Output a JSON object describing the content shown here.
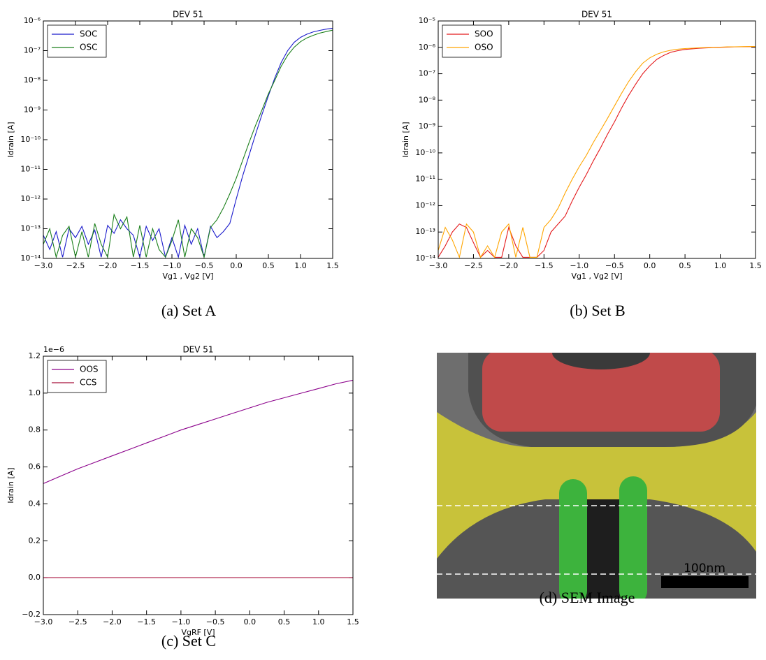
{
  "chart_data": [
    {
      "type": "line",
      "title": "DEV 51",
      "caption": "(a) Set A",
      "x_label": "Vg1 , Vg2 [V]",
      "y_label": "Idrain [A]",
      "log_y": true,
      "legend": "upper left",
      "x": [
        -3.0,
        -2.9,
        -2.8,
        -2.7,
        -2.6,
        -2.5,
        -2.4,
        -2.3,
        -2.2,
        -2.1,
        -2.0,
        -1.9,
        -1.8,
        -1.7,
        -1.6,
        -1.5,
        -1.4,
        -1.3,
        -1.2,
        -1.1,
        -1.0,
        -0.9,
        -0.8,
        -0.7,
        -0.6,
        -0.5,
        -0.4,
        -0.3,
        -0.2,
        -0.1,
        0.0,
        0.1,
        0.2,
        0.3,
        0.4,
        0.5,
        0.6,
        0.7,
        0.8,
        0.9,
        1.0,
        1.1,
        1.2,
        1.3,
        1.4,
        1.5
      ],
      "series": [
        {
          "name": "SOC",
          "color": "#1a1acc",
          "values": [
            6e-14,
            2e-14,
            8e-14,
            1.1e-14,
            1e-13,
            5e-14,
            1.2e-13,
            3e-14,
            9e-14,
            1.1e-14,
            1.3e-13,
            7e-14,
            2e-13,
            1e-13,
            6e-14,
            1.1e-14,
            1.2e-13,
            4e-14,
            1e-13,
            1.1e-14,
            5e-14,
            1.1e-14,
            1.3e-13,
            3e-14,
            1e-13,
            1.1e-14,
            1.2e-13,
            5e-14,
            8e-14,
            1.5e-13,
            1e-12,
            6e-12,
            3e-11,
            1.5e-10,
            7e-10,
            3e-09,
            1.2e-08,
            4e-08,
            1e-07,
            1.9e-07,
            2.8e-07,
            3.6e-07,
            4.3e-07,
            4.8e-07,
            5.3e-07,
            5.7e-07
          ]
        },
        {
          "name": "OSC",
          "color": "#1a7f1a",
          "values": [
            3e-14,
            1e-13,
            1.1e-14,
            6e-14,
            1.2e-13,
            1.1e-14,
            8e-14,
            1.1e-14,
            1.5e-13,
            3e-14,
            1.1e-14,
            3e-13,
            1e-13,
            2.5e-13,
            1.1e-14,
            1.3e-13,
            1.1e-14,
            1e-13,
            2e-14,
            1.1e-14,
            4e-14,
            2e-13,
            1.1e-14,
            1e-13,
            5e-14,
            1.1e-14,
            1.1e-13,
            2e-13,
            5e-13,
            1.5e-12,
            5e-12,
            2e-11,
            8e-11,
            3e-10,
            1e-09,
            3.5e-09,
            1e-08,
            3e-08,
            7e-08,
            1.3e-07,
            2e-07,
            2.7e-07,
            3.3e-07,
            3.9e-07,
            4.4e-07,
            4.9e-07
          ]
        }
      ],
      "xlim": [
        -3.0,
        1.5
      ],
      "xticks": [
        {
          "value": -3.0,
          "label": "−3.0"
        },
        {
          "value": -2.5,
          "label": "−2.5"
        },
        {
          "value": -2.0,
          "label": "−2.0"
        },
        {
          "value": -1.5,
          "label": "−1.5"
        },
        {
          "value": -1.0,
          "label": "−1.0"
        },
        {
          "value": -0.5,
          "label": "−0.5"
        },
        {
          "value": 0,
          "label": "0.0"
        },
        {
          "value": 0.5,
          "label": "0.5"
        },
        {
          "value": 1,
          "label": "1.0"
        },
        {
          "value": 1.5,
          "label": "1.5"
        }
      ],
      "ylim": [
        1e-14,
        1e-06
      ],
      "yticks": [
        {
          "value": 1e-14,
          "label": "10⁻¹⁴"
        },
        {
          "value": 1e-13,
          "label": "10⁻¹³"
        },
        {
          "value": 1e-12,
          "label": "10⁻¹²"
        },
        {
          "value": 1e-11,
          "label": "10⁻¹¹"
        },
        {
          "value": 1e-10,
          "label": "10⁻¹⁰"
        },
        {
          "value": 1e-09,
          "label": "10⁻⁹"
        },
        {
          "value": 1e-08,
          "label": "10⁻⁸"
        },
        {
          "value": 1e-07,
          "label": "10⁻⁷"
        },
        {
          "value": 1e-06,
          "label": "10⁻⁶"
        }
      ]
    },
    {
      "type": "line",
      "title": "DEV 51",
      "caption": "(b) Set B",
      "x_label": "Vg1 , Vg2 [V]",
      "y_label": "Idrain [A]",
      "log_y": true,
      "legend": "upper left",
      "x": [
        -3.0,
        -2.9,
        -2.8,
        -2.7,
        -2.6,
        -2.5,
        -2.4,
        -2.3,
        -2.2,
        -2.1,
        -2.0,
        -1.9,
        -1.8,
        -1.7,
        -1.6,
        -1.5,
        -1.4,
        -1.3,
        -1.2,
        -1.1,
        -1.0,
        -0.9,
        -0.8,
        -0.7,
        -0.6,
        -0.5,
        -0.4,
        -0.3,
        -0.2,
        -0.1,
        0.0,
        0.1,
        0.2,
        0.3,
        0.4,
        0.5,
        0.6,
        0.7,
        0.8,
        0.9,
        1.0,
        1.1,
        1.2,
        1.3,
        1.4,
        1.5
      ],
      "series": [
        {
          "name": "SOO",
          "color": "#e41a1c",
          "values": [
            1.1e-14,
            3e-14,
            1e-13,
            2e-13,
            1.5e-13,
            4e-14,
            1.1e-14,
            2e-14,
            1.1e-14,
            1.1e-14,
            1.5e-13,
            3e-14,
            1.1e-14,
            1.1e-14,
            1.1e-14,
            2e-14,
            1e-13,
            2e-13,
            4e-13,
            1.5e-12,
            5e-12,
            1.5e-11,
            5e-11,
            1.5e-10,
            5e-10,
            1.5e-09,
            5e-09,
            1.5e-08,
            4e-08,
            1e-07,
            2e-07,
            3.5e-07,
            5e-07,
            6.5e-07,
            7.5e-07,
            8.3e-07,
            8.8e-07,
            9.2e-07,
            9.5e-07,
            9.8e-07,
            1e-06,
            1.02e-06,
            1.04e-06,
            1.05e-06,
            1.06e-06,
            1.07e-06
          ]
        },
        {
          "name": "OSO",
          "color": "#ffa500",
          "values": [
            2e-14,
            1.5e-13,
            5e-14,
            1.1e-14,
            2e-13,
            1e-13,
            1.1e-14,
            3e-14,
            1.1e-14,
            1e-13,
            2e-13,
            1.1e-14,
            1.5e-13,
            1.1e-14,
            1.1e-14,
            1.5e-13,
            3e-13,
            8e-13,
            3e-12,
            1e-11,
            3e-11,
            8e-11,
            2.5e-10,
            7e-10,
            2e-09,
            6e-09,
            1.8e-08,
            5e-08,
            1.2e-07,
            2.5e-07,
            4e-07,
            5.5e-07,
            6.8e-07,
            7.8e-07,
            8.5e-07,
            9e-07,
            9.3e-07,
            9.6e-07,
            9.8e-07,
            1e-06,
            1.02e-06,
            1.04e-06,
            1.05e-06,
            1.06e-06,
            1.07e-06,
            1.08e-06
          ]
        }
      ],
      "xlim": [
        -3.0,
        1.5
      ],
      "xticks": [
        {
          "value": -3.0,
          "label": "−3.0"
        },
        {
          "value": -2.5,
          "label": "−2.5"
        },
        {
          "value": -2.0,
          "label": "−2.0"
        },
        {
          "value": -1.5,
          "label": "−1.5"
        },
        {
          "value": -1.0,
          "label": "−1.0"
        },
        {
          "value": -0.5,
          "label": "−0.5"
        },
        {
          "value": 0,
          "label": "0.0"
        },
        {
          "value": 0.5,
          "label": "0.5"
        },
        {
          "value": 1,
          "label": "1.0"
        },
        {
          "value": 1.5,
          "label": "1.5"
        }
      ],
      "ylim": [
        1e-14,
        1e-05
      ],
      "yticks": [
        {
          "value": 1e-14,
          "label": "10⁻¹⁴"
        },
        {
          "value": 1e-13,
          "label": "10⁻¹³"
        },
        {
          "value": 1e-12,
          "label": "10⁻¹²"
        },
        {
          "value": 1e-11,
          "label": "10⁻¹¹"
        },
        {
          "value": 1e-10,
          "label": "10⁻¹⁰"
        },
        {
          "value": 1e-09,
          "label": "10⁻⁹"
        },
        {
          "value": 1e-08,
          "label": "10⁻⁸"
        },
        {
          "value": 1e-07,
          "label": "10⁻⁷"
        },
        {
          "value": 1e-06,
          "label": "10⁻⁶"
        },
        {
          "value": 1e-05,
          "label": "10⁻⁵"
        }
      ]
    },
    {
      "type": "line",
      "title": "DEV 51",
      "caption": "(c) Set C",
      "x_label": "VgRF [V]",
      "y_label": "Idrain [A]",
      "y_offset_label": "1e−6",
      "log_y": false,
      "legend": "upper left",
      "x": [
        -3.0,
        -2.75,
        -2.5,
        -2.25,
        -2.0,
        -1.75,
        -1.5,
        -1.25,
        -1.0,
        -0.75,
        -0.5,
        -0.25,
        0.0,
        0.25,
        0.5,
        0.75,
        1.0,
        1.25,
        1.5
      ],
      "series": [
        {
          "name": "OOS",
          "color": "#8b008b",
          "values": [
            0.51,
            0.55,
            0.59,
            0.625,
            0.66,
            0.695,
            0.73,
            0.765,
            0.8,
            0.83,
            0.86,
            0.89,
            0.92,
            0.95,
            0.975,
            1.0,
            1.025,
            1.05,
            1.07
          ]
        },
        {
          "name": "CCS",
          "color": "#a8103c",
          "values": [
            0,
            0,
            0,
            0,
            0,
            0,
            0,
            0,
            0,
            0,
            0,
            0,
            0,
            0,
            0,
            0,
            0,
            0,
            0
          ]
        }
      ],
      "xlim": [
        -3.0,
        1.5
      ],
      "xticks": [
        {
          "value": -3.0,
          "label": "−3.0"
        },
        {
          "value": -2.5,
          "label": "−2.5"
        },
        {
          "value": -2.0,
          "label": "−2.0"
        },
        {
          "value": -1.5,
          "label": "−1.5"
        },
        {
          "value": -1.0,
          "label": "−1.0"
        },
        {
          "value": -0.5,
          "label": "−0.5"
        },
        {
          "value": 0,
          "label": "0.0"
        },
        {
          "value": 0.5,
          "label": "0.5"
        },
        {
          "value": 1,
          "label": "1.0"
        },
        {
          "value": 1.5,
          "label": "1.5"
        }
      ],
      "ylim": [
        -0.2,
        1.2
      ],
      "yticks": [
        {
          "value": -0.2,
          "label": "−0.2"
        },
        {
          "value": 0,
          "label": "0.0"
        },
        0.2,
        0.4,
        0.6,
        0.8,
        {
          "value": 1,
          "label": "1.0"
        },
        1.2
      ]
    }
  ],
  "image": {
    "caption": "(d) SEM Image",
    "scale_label": "100nm"
  }
}
